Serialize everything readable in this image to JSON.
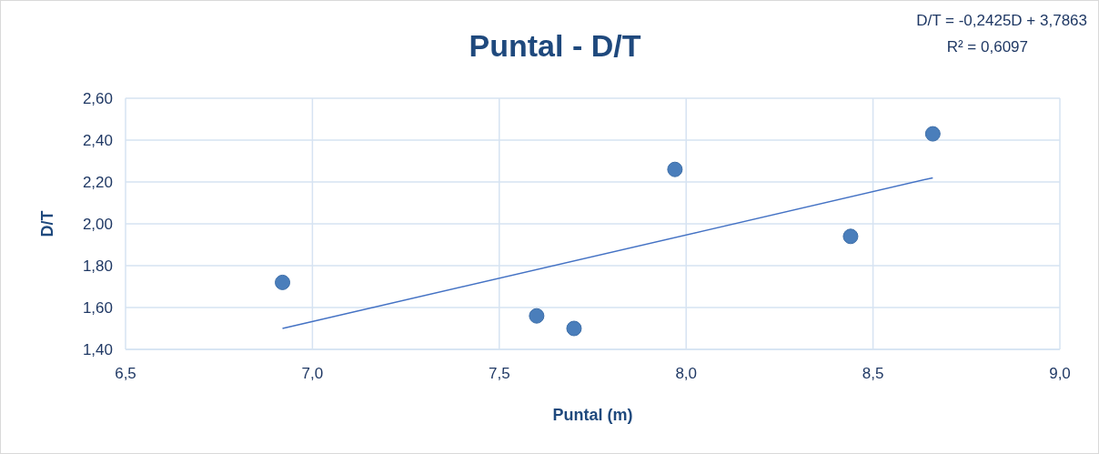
{
  "chart_data": {
    "type": "scatter",
    "title": "Puntal - D/T",
    "xlabel": "Puntal (m)",
    "ylabel": "D/T",
    "xlim": [
      6.5,
      9.0
    ],
    "xticks": [
      {
        "value": 6.5,
        "label": "6,5"
      },
      {
        "value": 7.0,
        "label": "7,0"
      },
      {
        "value": 7.5,
        "label": "7,5"
      },
      {
        "value": 8.0,
        "label": "8,0"
      },
      {
        "value": 8.5,
        "label": "8,5"
      },
      {
        "value": 9.0,
        "label": "9,0"
      }
    ],
    "ylim": [
      1.4,
      2.6
    ],
    "yticks": [
      {
        "value": 1.4,
        "label": "1,40"
      },
      {
        "value": 1.6,
        "label": "1,60"
      },
      {
        "value": 1.8,
        "label": "1,80"
      },
      {
        "value": 2.0,
        "label": "2,00"
      },
      {
        "value": 2.2,
        "label": "2,20"
      },
      {
        "value": 2.4,
        "label": "2,40"
      },
      {
        "value": 2.6,
        "label": "2,60"
      }
    ],
    "grid": true,
    "series": [
      {
        "color": "#4a7ebb",
        "marker": "circle",
        "x": [
          6.92,
          7.6,
          7.7,
          7.97,
          8.44,
          8.66
        ],
        "values": [
          1.72,
          1.56,
          1.5,
          2.26,
          1.94,
          2.43
        ]
      },
      {
        "type": "line",
        "color": "#4472c4",
        "marker": "none",
        "x": [
          6.92,
          8.66
        ],
        "values": [
          1.5,
          2.22
        ]
      }
    ],
    "annotations": [
      "D/T = -0,2425D + 3,7863",
      "R² = 0,6097"
    ]
  }
}
